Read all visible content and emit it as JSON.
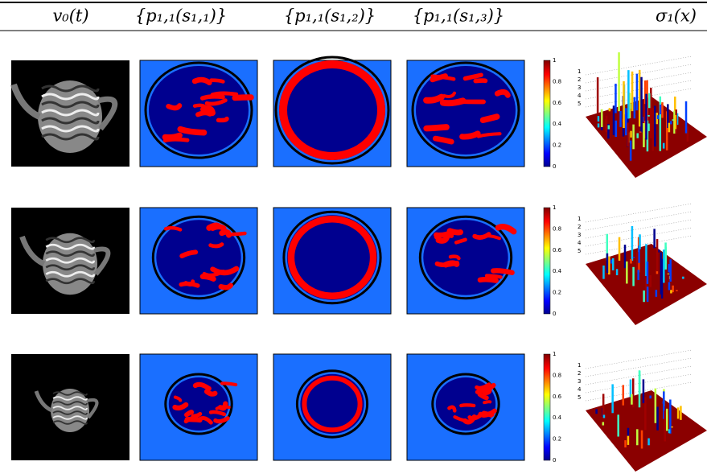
{
  "header": {
    "columns": [
      "v₀(t)",
      "{p₁,₁(s₁,₁)}",
      "{p₁,₁(s₁,₂)}",
      "{p₁,₁(s₁,₃)}",
      "σ₁(x)"
    ]
  },
  "rows": [
    {
      "colorbar_ticks": [
        1,
        0.8,
        0.6,
        0.4,
        0.2,
        0
      ],
      "surface_ticks": [
        1,
        2,
        3,
        4,
        5
      ]
    },
    {
      "colorbar_ticks": [
        1,
        0.8,
        0.6,
        0.4,
        0.2,
        0
      ],
      "surface_ticks": [
        1,
        2,
        3,
        4,
        5
      ]
    },
    {
      "colorbar_ticks": [
        1,
        0.8,
        0.6,
        0.4,
        0.2,
        0
      ],
      "surface_ticks": [
        1,
        2,
        3,
        4,
        5
      ]
    }
  ]
}
